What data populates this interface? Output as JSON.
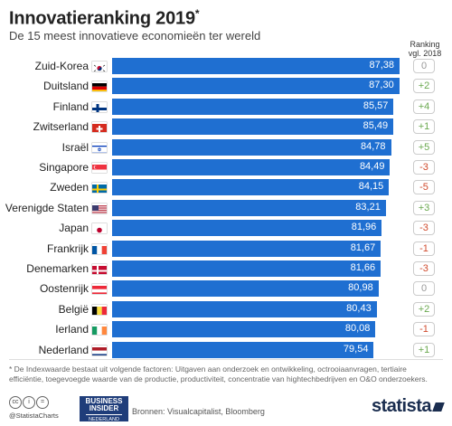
{
  "header": {
    "title": "Innovatieranking 2019",
    "title_mark": "*",
    "subtitle": "De 15 meest innovatieve economieën ter wereld",
    "ranking_header_line1": "Ranking",
    "ranking_header_line2": "vgl. 2018"
  },
  "chart_data": {
    "type": "bar",
    "orientation": "horizontal",
    "title": "Innovatieranking 2019",
    "subtitle": "De 15 meest innovatieve economieën ter wereld",
    "categories": [
      "Zuid-Korea",
      "Duitsland",
      "Finland",
      "Zwitserland",
      "Israël",
      "Singapore",
      "Zweden",
      "Verenigde Staten",
      "Japan",
      "Frankrijk",
      "Denemarken",
      "Oostenrijk",
      "België",
      "Ierland",
      "Nederland"
    ],
    "values": [
      87.38,
      87.3,
      85.57,
      85.49,
      84.78,
      84.49,
      84.15,
      83.21,
      81.96,
      81.67,
      81.66,
      80.98,
      80.43,
      80.08,
      79.54
    ],
    "value_labels": [
      "87,38",
      "87,30",
      "85,57",
      "85,49",
      "84,78",
      "84,49",
      "84,15",
      "83,21",
      "81,96",
      "81,67",
      "81,66",
      "80,98",
      "80,43",
      "80,08",
      "79,54"
    ],
    "ranking_change": [
      "0",
      "+2",
      "+4",
      "+1",
      "+5",
      "-3",
      "-5",
      "+3",
      "-3",
      "-1",
      "-3",
      "0",
      "+2",
      "-1",
      "+1"
    ],
    "flags": [
      "flag-south-korea",
      "flag-germany",
      "flag-finland",
      "flag-switzerland",
      "flag-israel",
      "flag-singapore",
      "flag-sweden",
      "flag-usa",
      "flag-japan",
      "flag-france",
      "flag-denmark",
      "flag-austria",
      "flag-belgium",
      "flag-ireland",
      "flag-netherlands"
    ],
    "xlim": [
      0,
      87.38
    ],
    "bar_color": "#1f6fd1",
    "positive_color": "#6aa84f",
    "negative_color": "#d04b2e",
    "neutral_color": "#999999"
  },
  "footer": {
    "footnote": "* De Indexwaarde bestaat uit volgende factoren: Uitgaven aan onderzoek en ontwikkeling, octrooiaanvragen, tertiaire efficiëntie, toegevoegde waarde van de productie, productiviteit, concentratie van hightechbedrijven en O&O onderzoekers.",
    "cc_icon_1": "cc",
    "cc_icon_2": "i",
    "cc_icon_3": "=",
    "handle": "@StatistaCharts",
    "bi_line1": "BUSINESS",
    "bi_line2": "INSIDER",
    "bi_line3": "NEDERLAND",
    "sources": "Bronnen: Visualcapitalist, Bloomberg",
    "brand": "statista"
  }
}
